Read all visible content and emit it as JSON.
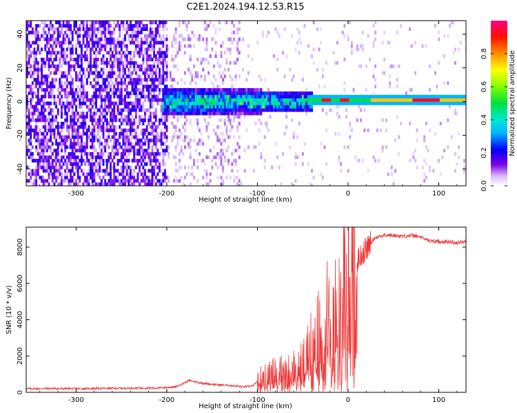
{
  "figure": {
    "title": "C2E1.2024.194.12.53.R15"
  },
  "chart_data": [
    {
      "type": "heatmap",
      "xlabel": "Height of straight line (km)",
      "ylabel": "Frequency (Hz)",
      "xlim": [
        -355,
        130
      ],
      "ylim": [
        -50,
        48
      ],
      "xticks": [
        -300,
        -200,
        -100,
        0,
        100
      ],
      "yticks": [
        -40,
        -20,
        0,
        20,
        40
      ],
      "colorbar": {
        "label": "Normalized spectral amplitude",
        "range": [
          0,
          1
        ],
        "ticks": [
          0.0,
          0.2,
          0.4,
          0.6,
          0.8
        ],
        "colormap": [
          "#ffffff",
          "#c090f0",
          "#7a00e6",
          "#0000ff",
          "#00c8ff",
          "#00e060",
          "#a0ff00",
          "#ffff00",
          "#ff8000",
          "#ff0000",
          "#ff0080"
        ]
      },
      "features": [
        {
          "x_range": [
            -355,
            -200
          ],
          "description_value": "broadband noise, amplitude ~0.1-0.2"
        },
        {
          "x_range": [
            -200,
            -120
          ],
          "description_value": "sparse noise, amplitude ~0.05"
        },
        {
          "x_range": [
            -200,
            -40
          ],
          "freq_center": 0,
          "freq_halfwidth": 8,
          "amplitude": 0.5
        },
        {
          "x_range": [
            -40,
            130
          ],
          "freq_center": 1,
          "freq_halfwidth": 2.5,
          "amplitude": 0.6
        },
        {
          "x_range": [
            70,
            100
          ],
          "freq_center": 1.5,
          "freq_halfwidth": 1.5,
          "amplitude": 0.95
        }
      ]
    },
    {
      "type": "line",
      "xlabel": "Height of straight line (km)",
      "ylabel": "SNR (10 * v/v)",
      "xlim": [
        -355,
        130
      ],
      "ylim": [
        0,
        9100
      ],
      "xticks": [
        -300,
        -200,
        -100,
        0,
        100
      ],
      "yticks": [
        0,
        2000,
        4000,
        6000,
        8000
      ],
      "color": "#ee3333",
      "series": [
        {
          "x": [
            -355,
            -330,
            -300,
            -270,
            -240,
            -210,
            -190,
            -175,
            -160,
            -145,
            -130,
            -115,
            -105,
            -100,
            -95,
            -90,
            -85,
            -80,
            -75,
            -70,
            -65,
            -60,
            -55,
            -50,
            -45,
            -40,
            -35,
            -30,
            -25,
            -20,
            -15,
            -10,
            -5,
            0,
            5,
            10,
            15,
            20,
            25,
            30,
            40,
            50,
            60,
            70,
            80,
            90,
            100,
            110,
            120,
            130
          ],
          "y": [
            200,
            210,
            200,
            220,
            230,
            240,
            300,
            650,
            500,
            420,
            380,
            300,
            350,
            600,
            1000,
            1300,
            900,
            1500,
            1200,
            1100,
            1300,
            1400,
            1500,
            1700,
            2200,
            2800,
            3000,
            3500,
            4200,
            4500,
            5000,
            5600,
            5900,
            5800,
            6600,
            7200,
            7600,
            7900,
            8200,
            8550,
            8650,
            8650,
            8600,
            8650,
            8550,
            8350,
            8300,
            8300,
            8250,
            8300
          ]
        }
      ]
    }
  ]
}
